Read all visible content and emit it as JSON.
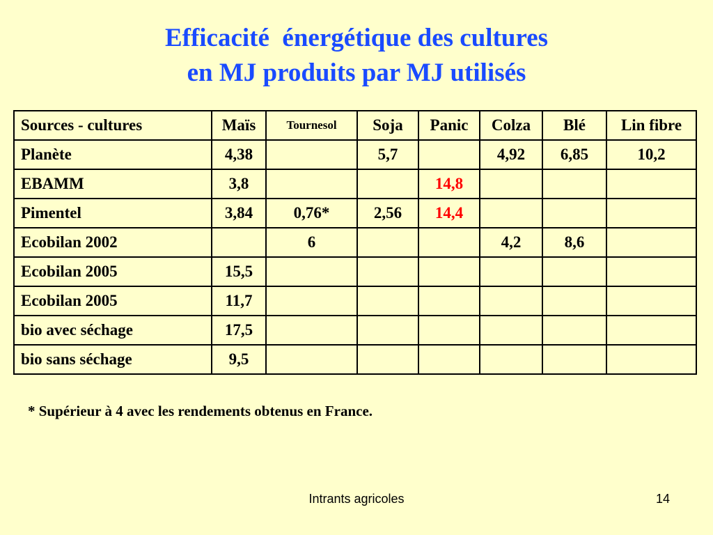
{
  "slide": {
    "title_line1": "Efficacité  énergétique des cultures",
    "title_line2": "en MJ produits par MJ utilisés",
    "footnote": "* Supérieur à 4 avec les rendements obtenus en France.",
    "footer_text": "Intrants agricoles",
    "page_number": "14",
    "title_color": "#1a4bff",
    "highlight_color": "#ff0000",
    "background_color": "#ffffcc"
  },
  "table": {
    "headers": [
      "Sources  - cultures",
      "Maïs",
      "Tournesol",
      "Soja",
      "Panic",
      "Colza",
      "Blé",
      "Lin fibre"
    ],
    "rows": [
      [
        "Planète",
        "4,38",
        "",
        "5,7",
        "",
        "4,92",
        "6,85",
        "10,2"
      ],
      [
        "EBAMM",
        "3,8",
        "",
        "",
        "14,8",
        "",
        "",
        ""
      ],
      [
        "Pimentel",
        "3,84",
        "0,76*",
        "2,56",
        "14,4",
        "",
        "",
        ""
      ],
      [
        "Ecobilan 2002",
        "",
        "6",
        "",
        "",
        "4,2",
        "8,6",
        ""
      ],
      [
        "Ecobilan 2005",
        "15,5",
        "",
        "",
        "",
        "",
        "",
        ""
      ],
      [
        "Ecobilan 2005",
        "11,7",
        "",
        "",
        "",
        "",
        "",
        ""
      ],
      [
        "bio avec séchage",
        "17,5",
        "",
        "",
        "",
        "",
        "",
        ""
      ],
      [
        "bio sans séchage",
        "9,5",
        "",
        "",
        "",
        "",
        "",
        ""
      ]
    ]
  }
}
